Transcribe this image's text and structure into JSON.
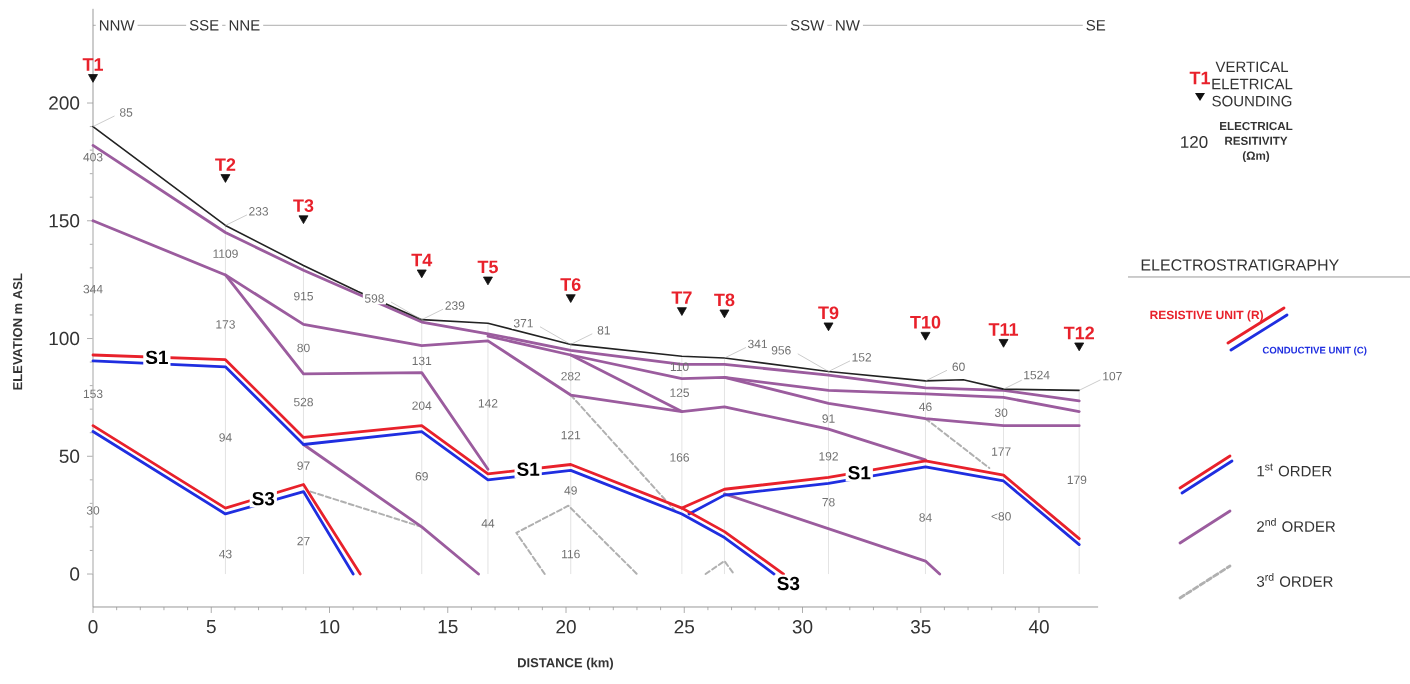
{
  "chart_data": {
    "type": "line",
    "xlabel": "DISTANCE (km)",
    "ylabel": "ELEVATION m ASL",
    "legend_title": "ELECTROSTRATIGRAPHY",
    "xlim": [
      0,
      42.5
    ],
    "ylim": [
      -14,
      240
    ],
    "xticks": [
      0,
      5,
      10,
      15,
      20,
      25,
      30,
      35,
      40
    ],
    "yticks": [
      0,
      50,
      100,
      150,
      200
    ],
    "legend": "right",
    "series": [
      {
        "color": "#222222",
        "x": [
          0,
          5.6,
          8.9,
          11.2,
          13.9,
          16.7,
          20.2,
          24.9,
          26.7,
          31.1,
          35.2,
          36.8,
          38.5,
          41.7
        ],
        "values": [
          190,
          148,
          131,
          120,
          108,
          106.5,
          97.5,
          92.5,
          91.7,
          86,
          82,
          82.5,
          78.5,
          78
        ]
      },
      {
        "name": "RESISTIVE UNIT (R)",
        "color": "#e8212b",
        "x": [
          0,
          5.6,
          8.9,
          13.9,
          16.7,
          20.2,
          24.9,
          26.7,
          29.2
        ],
        "values": [
          93,
          91,
          58,
          63,
          42.5,
          46.5,
          28,
          18,
          0
        ]
      },
      {
        "name": "CONDUCTIVE UNIT (C)",
        "color": "#1f2ee0",
        "x": [
          0,
          5.6,
          8.9,
          13.9,
          16.7,
          20.2,
          24.9,
          26.7,
          28.8
        ],
        "values": [
          90.5,
          88,
          55,
          60.5,
          40,
          44,
          25.5,
          15.5,
          0
        ]
      },
      {
        "color": "#e8212b",
        "x": [
          24.9,
          26.7,
          31.1,
          35.2,
          38.5,
          41.7
        ],
        "values": [
          28,
          36,
          41,
          48,
          42,
          15
        ]
      },
      {
        "color": "#1f2ee0",
        "x": [
          25.2,
          26.7,
          31.1,
          35.2,
          38.5,
          41.7
        ],
        "values": [
          25.5,
          33.5,
          38.5,
          45.5,
          39.5,
          12.5
        ]
      },
      {
        "color": "#e8212b",
        "x": [
          0,
          5.6,
          8.9,
          11.3
        ],
        "values": [
          63,
          28,
          38,
          0
        ]
      },
      {
        "color": "#1f2ee0",
        "x": [
          0,
          5.6,
          8.9,
          11.0
        ],
        "values": [
          60.5,
          25.5,
          35,
          0
        ]
      },
      {
        "name": "2$^{nd}$ ORDER",
        "color": "#9b5c9e",
        "x": [
          0,
          5.6,
          8.9,
          13.9,
          16.7,
          20.2,
          24.9,
          26.7,
          31.1,
          35.2,
          38.5,
          41.7
        ],
        "values": [
          182,
          145,
          129,
          107,
          102,
          95,
          89,
          89,
          84.5,
          79,
          78,
          73.5
        ]
      },
      {
        "color": "#9b5c9e",
        "x": [
          0,
          5.6,
          8.9,
          13.9,
          16.7,
          20.2,
          24.9,
          26.7,
          31.1,
          35.2
        ],
        "values": [
          150,
          127,
          106,
          97,
          99,
          76,
          69,
          71,
          61.5,
          48.5
        ]
      },
      {
        "color": "#9b5c9e",
        "x": [
          5.6,
          8.9,
          13.9,
          16.7
        ],
        "values": [
          127,
          85,
          85.5,
          44.5
        ]
      },
      {
        "color": "#9b5c9e",
        "x": [
          8.9,
          13.9,
          16.3
        ],
        "values": [
          55,
          20,
          0
        ]
      },
      {
        "color": "#9b5c9e",
        "x": [
          16.7,
          20.2,
          24.9,
          26.7,
          31.1,
          35.2,
          38.5,
          41.7
        ],
        "values": [
          101,
          93,
          83,
          83.5,
          78,
          76.5,
          75,
          69
        ]
      },
      {
        "color": "#9b5c9e",
        "x": [
          20.2,
          24.9
        ],
        "values": [
          93,
          69
        ]
      },
      {
        "color": "#9b5c9e",
        "x": [
          26.7,
          31.1,
          35.2,
          38.5,
          41.7
        ],
        "values": [
          83.5,
          72.5,
          66,
          63,
          63
        ]
      },
      {
        "color": "#9b5c9e",
        "x": [
          26.7,
          35.2,
          35.8
        ],
        "values": [
          34,
          5.5,
          0
        ]
      },
      {
        "name": "3$^{rd}$ ORDER",
        "color": "#b0b0b0",
        "line_style": "dashed",
        "x": [
          9.2,
          13.9
        ],
        "values": [
          35,
          20
        ]
      },
      {
        "color": "#b0b0b0",
        "line_style": "dashed",
        "x": [
          19.1,
          17.9,
          20.1,
          23
        ],
        "values": [
          0,
          17.5,
          29,
          0
        ]
      },
      {
        "color": "#b0b0b0",
        "line_style": "dashed",
        "x": [
          20.2,
          24.6
        ],
        "values": [
          76,
          27
        ]
      },
      {
        "color": "#b0b0b0",
        "line_style": "dashed",
        "x": [
          25.9,
          26.7,
          27.1
        ],
        "values": [
          0,
          5.5,
          0
        ]
      },
      {
        "color": "#b0b0b0",
        "line_style": "dashed",
        "x": [
          35.2,
          37.9
        ],
        "values": [
          66,
          45
        ]
      },
      {
        "name": "VERTICAL ELETRICAL SOUNDING",
        "type": "scatter",
        "marker": "triangle",
        "color": "#111111",
        "x": [
          0,
          5.6,
          8.9,
          13.9,
          16.7,
          20.2,
          24.9,
          26.7,
          31.1,
          35.2,
          38.5,
          41.7
        ],
        "values": [
          211,
          168.5,
          151,
          128,
          125,
          117.5,
          112,
          111,
          105.5,
          101.5,
          98.5,
          97
        ],
        "value_labels": [
          "T1",
          "T2",
          "T3",
          "T4",
          "T5",
          "T6",
          "T7",
          "T8",
          "T9",
          "T10",
          "T11",
          "T12"
        ]
      }
    ],
    "ref_lines": [
      {
        "axis": "y",
        "value": 233,
        "color": "#999999"
      },
      {
        "axis": "x",
        "value": 0,
        "color": "#dcdcdc"
      },
      {
        "axis": "x",
        "value": 5.6,
        "color": "#dcdcdc"
      },
      {
        "axis": "x",
        "value": 8.9,
        "color": "#dcdcdc"
      },
      {
        "axis": "x",
        "value": 13.9,
        "color": "#dcdcdc"
      },
      {
        "axis": "x",
        "value": 16.7,
        "color": "#dcdcdc"
      },
      {
        "axis": "x",
        "value": 20.2,
        "color": "#dcdcdc"
      },
      {
        "axis": "x",
        "value": 24.9,
        "color": "#dcdcdc"
      },
      {
        "axis": "x",
        "value": 26.7,
        "color": "#dcdcdc"
      },
      {
        "axis": "x",
        "value": 31.1,
        "color": "#dcdcdc"
      },
      {
        "axis": "x",
        "value": 35.2,
        "color": "#dcdcdc"
      },
      {
        "axis": "x",
        "value": 38.5,
        "color": "#dcdcdc"
      },
      {
        "axis": "x",
        "value": 41.7,
        "color": "#dcdcdc"
      }
    ],
    "annotations": [
      {
        "text": "NNW",
        "x": 1.0,
        "y": 233
      },
      {
        "text": "SSE",
        "x": 4.7,
        "y": 233
      },
      {
        "text": "NNE",
        "x": 6.4,
        "y": 233
      },
      {
        "text": "SSW",
        "x": 30.2,
        "y": 233
      },
      {
        "text": "NW",
        "x": 31.9,
        "y": 233
      },
      {
        "text": "SE",
        "x": 42.4,
        "y": 233
      },
      {
        "text": "S1",
        "x": 2.7,
        "y": 92
      },
      {
        "text": "S3",
        "x": 7.2,
        "y": 32
      },
      {
        "text": "S1",
        "x": 18.4,
        "y": 44.5
      },
      {
        "text": "S1",
        "x": 32.4,
        "y": 43
      },
      {
        "text": "S3",
        "x": 29.4,
        "y": -4
      },
      {
        "text": "85",
        "x": 0,
        "y": 190
      },
      {
        "text": "403",
        "x": 0,
        "y": 177
      },
      {
        "text": "344",
        "x": 0,
        "y": 121
      },
      {
        "text": "153",
        "x": 0,
        "y": 76.5
      },
      {
        "text": "30",
        "x": 0,
        "y": 27
      },
      {
        "text": "233",
        "x": 5.6,
        "y": 148
      },
      {
        "text": "1109",
        "x": 5.6,
        "y": 136
      },
      {
        "text": "173",
        "x": 5.6,
        "y": 106
      },
      {
        "text": "94",
        "x": 5.6,
        "y": 58
      },
      {
        "text": "43",
        "x": 5.6,
        "y": 8.5
      },
      {
        "text": "915",
        "x": 8.9,
        "y": 118
      },
      {
        "text": "80",
        "x": 8.9,
        "y": 96
      },
      {
        "text": "528",
        "x": 8.9,
        "y": 73
      },
      {
        "text": "97",
        "x": 8.9,
        "y": 46
      },
      {
        "text": "27",
        "x": 8.9,
        "y": 14
      },
      {
        "text": "598",
        "x": 13.9,
        "y": 108
      },
      {
        "text": "239",
        "x": 13.9,
        "y": 108
      },
      {
        "text": "131",
        "x": 13.9,
        "y": 90.5
      },
      {
        "text": "204",
        "x": 13.9,
        "y": 71.5
      },
      {
        "text": "69",
        "x": 13.9,
        "y": 41.5
      },
      {
        "text": "142",
        "x": 16.7,
        "y": 72.5
      },
      {
        "text": "44",
        "x": 16.7,
        "y": 21.5
      },
      {
        "text": "371",
        "x": 20.2,
        "y": 97.5
      },
      {
        "text": "81",
        "x": 20.2,
        "y": 97.5
      },
      {
        "text": "282",
        "x": 20.2,
        "y": 84
      },
      {
        "text": "121",
        "x": 20.2,
        "y": 59
      },
      {
        "text": "49",
        "x": 20.2,
        "y": 35.5
      },
      {
        "text": "116",
        "x": 20.2,
        "y": 8.5
      },
      {
        "text": "110",
        "x": 24.8,
        "y": 88
      },
      {
        "text": "125",
        "x": 24.8,
        "y": 77
      },
      {
        "text": "166",
        "x": 24.8,
        "y": 49.5
      },
      {
        "text": "341",
        "x": 26.7,
        "y": 91.7
      },
      {
        "text": "956",
        "x": 31.1,
        "y": 86
      },
      {
        "text": "152",
        "x": 31.1,
        "y": 86
      },
      {
        "text": "91",
        "x": 31.1,
        "y": 66
      },
      {
        "text": "192",
        "x": 31.1,
        "y": 50
      },
      {
        "text": "78",
        "x": 31.1,
        "y": 30.5
      },
      {
        "text": "60",
        "x": 35.2,
        "y": 82
      },
      {
        "text": "46",
        "x": 35.2,
        "y": 71
      },
      {
        "text": "84",
        "x": 35.2,
        "y": 24
      },
      {
        "text": "1524",
        "x": 38.5,
        "y": 78.5
      },
      {
        "text": "30",
        "x": 38.4,
        "y": 68.5
      },
      {
        "text": "177",
        "x": 38.4,
        "y": 52
      },
      {
        "text": "<80",
        "x": 38.4,
        "y": 24.5
      },
      {
        "text": "107",
        "x": 41.7,
        "y": 78
      },
      {
        "text": "179",
        "x": 41.6,
        "y": 40
      },
      "T1",
      "120",
      "ELECTRICAL RESITIVITY (Ωm)",
      "1$^{st}$ ORDER"
    ]
  }
}
